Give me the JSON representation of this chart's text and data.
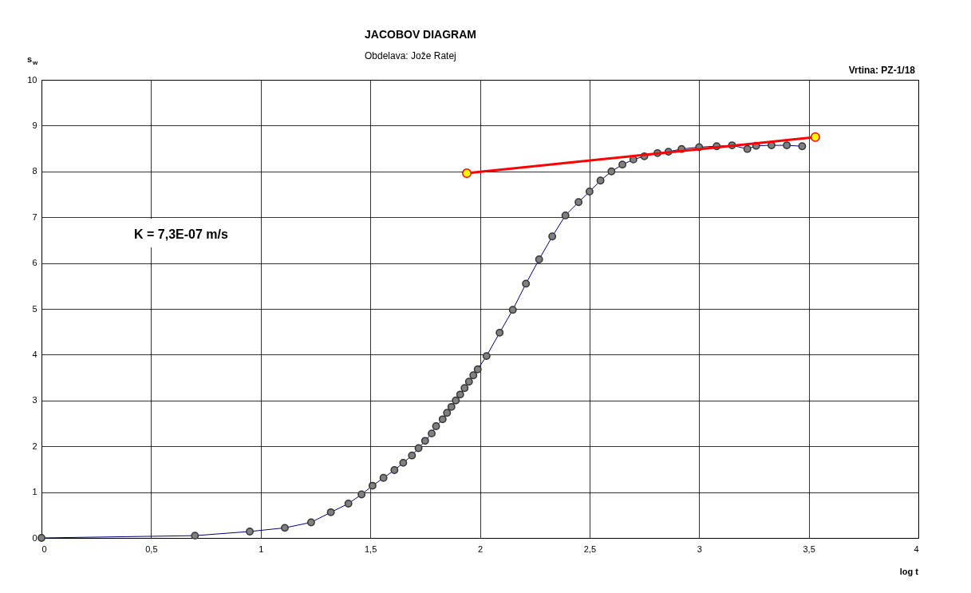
{
  "chart_data": {
    "type": "line",
    "title": "JACOBOV DIAGRAM",
    "subtitle": "Obdelava: Jože Ratej",
    "xlabel": "log t",
    "ylabel": "s$_{w}$",
    "annotations": [
      "K = 7,3E-07 m/s",
      "Vrtina: PZ-1/18"
    ],
    "xlim": [
      0,
      4
    ],
    "ylim": [
      0,
      10
    ],
    "xticks": [
      0,
      {
        "value": 0.5,
        "label": "0,5"
      },
      1,
      {
        "value": 1.5,
        "label": "1,5"
      },
      2,
      {
        "value": 2.5,
        "label": "2,5"
      },
      3,
      {
        "value": 3.5,
        "label": "3,5"
      },
      4
    ],
    "yticks": [
      0,
      1,
      2,
      3,
      4,
      5,
      6,
      7,
      8,
      9,
      10
    ],
    "grid": true,
    "marker": "circle",
    "series": [
      {
        "color": "#808080",
        "x": [
          0,
          0.7,
          0.95,
          1.11,
          1.23,
          1.32,
          1.4,
          1.46,
          1.51,
          1.56,
          1.61,
          1.65,
          1.69,
          1.72,
          1.75,
          1.78,
          1.8,
          1.83,
          1.85,
          1.87,
          1.89,
          1.91,
          1.93,
          1.95,
          1.97,
          1.99,
          2.03,
          2.09,
          2.15,
          2.21,
          2.27,
          2.33,
          2.39,
          2.45,
          2.5,
          2.55,
          2.6,
          2.65,
          2.7,
          2.75,
          2.81,
          2.86,
          2.92,
          3.0,
          3.08,
          3.15,
          3.22,
          3.26,
          3.33,
          3.4,
          3.47
        ],
        "values": [
          0,
          0.05,
          0.14,
          0.22,
          0.34,
          0.56,
          0.75,
          0.95,
          1.14,
          1.31,
          1.48,
          1.64,
          1.8,
          1.96,
          2.12,
          2.28,
          2.44,
          2.59,
          2.73,
          2.86,
          3.0,
          3.13,
          3.27,
          3.41,
          3.55,
          3.68,
          3.97,
          4.48,
          4.98,
          5.55,
          6.08,
          6.58,
          7.04,
          7.33,
          7.56,
          7.8,
          8.0,
          8.15,
          8.26,
          8.33,
          8.4,
          8.43,
          8.49,
          8.53,
          8.55,
          8.57,
          8.49,
          8.56,
          8.57,
          8.57,
          8.55
        ]
      },
      {
        "color": "#ff0000",
        "x": [
          1.94,
          3.53
        ],
        "values": [
          7.96,
          8.75
        ]
      }
    ]
  }
}
